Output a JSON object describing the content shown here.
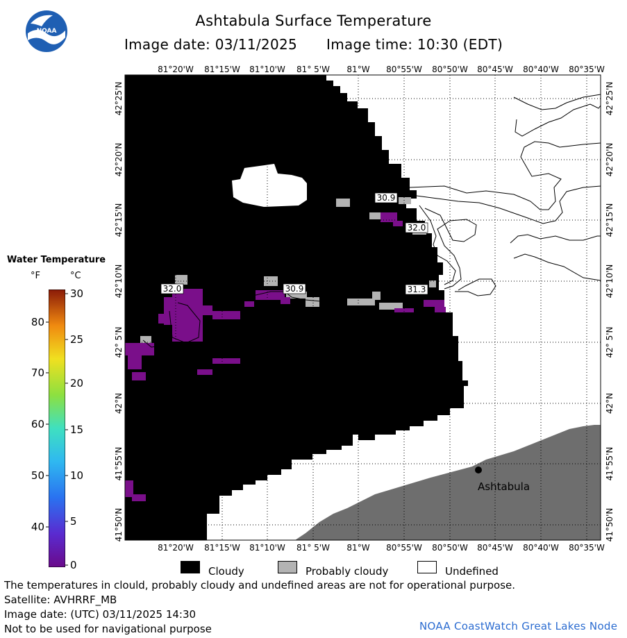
{
  "header": {
    "title": "Ashtabula Surface Temperature",
    "image_date_label": "Image date: 03/11/2025",
    "image_time_label": "Image time: 10:30 (EDT)"
  },
  "logo": {
    "text": "NOAA",
    "icon": "noaa-logo-icon"
  },
  "map": {
    "lon_labels": [
      "81°20'W",
      "81°15'W",
      "81°10'W",
      "81° 5'W",
      "81°W",
      "80°55'W",
      "80°50'W",
      "80°45'W",
      "80°40'W",
      "80°35'W"
    ],
    "lat_labels": [
      "42°25'N",
      "42°20'N",
      "42°15'N",
      "42°10'N",
      "42° 5'N",
      "42°N",
      "41°55'N",
      "41°50'N"
    ],
    "temp_labels": [
      "30.9",
      "32.0",
      "32.0",
      "30.9",
      "31.3"
    ],
    "place_label": "Ashtabula",
    "colors": {
      "cloudy": "#000000",
      "probably_cloudy": "#b3b3b3",
      "land": "#6e6e6e",
      "undefined": "#ffffff",
      "cold_water": "#7a0f8a"
    }
  },
  "colorbar": {
    "title": "Water Temperature",
    "unit_f": "°F",
    "unit_c": "°C",
    "f_ticks": [
      "80",
      "70",
      "60",
      "50",
      "40"
    ],
    "c_ticks": [
      "30",
      "25",
      "20",
      "15",
      "10",
      "5",
      "0"
    ]
  },
  "legend": {
    "cloudy": "Cloudy",
    "probably_cloudy": "Probably cloudy",
    "undefined": "Undefined"
  },
  "footer": {
    "line1": "The temperatures in clould, probably cloudy and undefined areas are not for operational purpose.",
    "line2": "Satellite: AVHRRF_MB",
    "line3": "Image date: (UTC) 03/11/2025  14:30",
    "line4": "Not to be used for navigational purpose",
    "credit": "NOAA CoastWatch Great Lakes Node"
  }
}
